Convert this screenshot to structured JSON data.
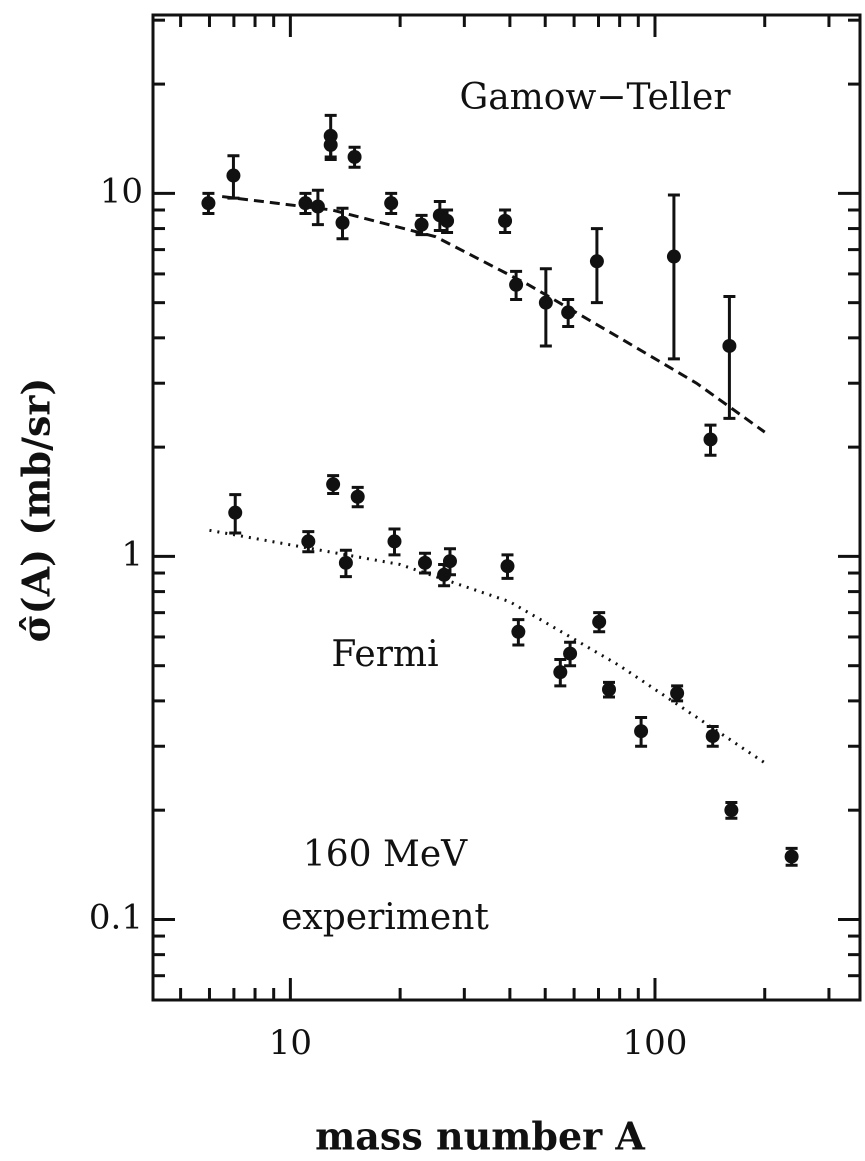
{
  "chart_data": {
    "type": "scatter",
    "xlabel": "mass number A",
    "ylabel": "σ̂(A) (mb/sr)",
    "log_x": true,
    "log_y": true,
    "xlim": [
      4.2,
      365
    ],
    "ylim": [
      0.06,
      31
    ],
    "xticks": [
      10,
      100
    ],
    "yticks": [
      0.1,
      1,
      10
    ],
    "xminorticks": [
      5,
      6,
      7,
      8,
      9,
      20,
      30,
      40,
      50,
      60,
      70,
      80,
      90,
      200,
      300
    ],
    "yminorticks": [
      0.07,
      0.08,
      0.09,
      0.2,
      0.3,
      0.4,
      0.5,
      0.6,
      0.7,
      0.8,
      0.9,
      2,
      3,
      4,
      5,
      6,
      7,
      8,
      9,
      20,
      30
    ],
    "color": "#111111",
    "series": [
      {
        "name": "Gamow−Teller",
        "x": [
          5.96,
          6.98,
          11.0,
          11.9,
          12.9,
          12.9,
          13.9,
          15.0,
          18.9,
          22.9,
          25.7,
          26.9,
          38.8,
          41.6,
          50.2,
          57.8,
          69.3,
          112.7,
          142,
          160
        ],
        "values": [
          9.4,
          11.2,
          9.4,
          9.2,
          14.4,
          13.6,
          8.3,
          12.6,
          9.4,
          8.2,
          8.7,
          8.4,
          8.4,
          5.6,
          5.0,
          4.7,
          6.5,
          6.7,
          2.1,
          3.8
        ],
        "errors": [
          0.6,
          1.5,
          0.6,
          1.0,
          2.0,
          1.0,
          0.8,
          0.8,
          0.6,
          0.5,
          0.8,
          0.6,
          0.6,
          0.5,
          1.2,
          0.4,
          1.5,
          3.2,
          0.2,
          1.4
        ]
      },
      {
        "name": "Fermi",
        "x": [
          7.06,
          11.2,
          13.1,
          14.2,
          15.3,
          19.3,
          23.4,
          26.4,
          27.4,
          39.4,
          42.2,
          55,
          58.5,
          70.3,
          74.8,
          91.6,
          115,
          144,
          162,
          237
        ],
        "values": [
          1.32,
          1.1,
          1.58,
          0.96,
          1.46,
          1.1,
          0.96,
          0.89,
          0.97,
          0.94,
          0.62,
          0.48,
          0.54,
          0.66,
          0.43,
          0.33,
          0.42,
          0.32,
          0.2,
          0.149
        ],
        "errors": [
          0.16,
          0.07,
          0.09,
          0.08,
          0.09,
          0.09,
          0.06,
          0.06,
          0.08,
          0.07,
          0.05,
          0.04,
          0.04,
          0.04,
          0.02,
          0.03,
          0.02,
          0.02,
          0.01,
          0.008
        ]
      }
    ],
    "fits": [
      {
        "style": "dashed",
        "x": [
          6.5,
          13,
          25,
          45,
          80,
          130,
          200
        ],
        "values": [
          9.8,
          9.0,
          7.6,
          5.6,
          4.0,
          3.0,
          2.2
        ]
      },
      {
        "style": "dotted",
        "x": [
          6,
          20,
          40,
          80,
          200
        ],
        "values": [
          1.18,
          0.95,
          0.75,
          0.5,
          0.27
        ]
      }
    ],
    "annotations": [
      "160 MeV",
      "experiment"
    ]
  }
}
